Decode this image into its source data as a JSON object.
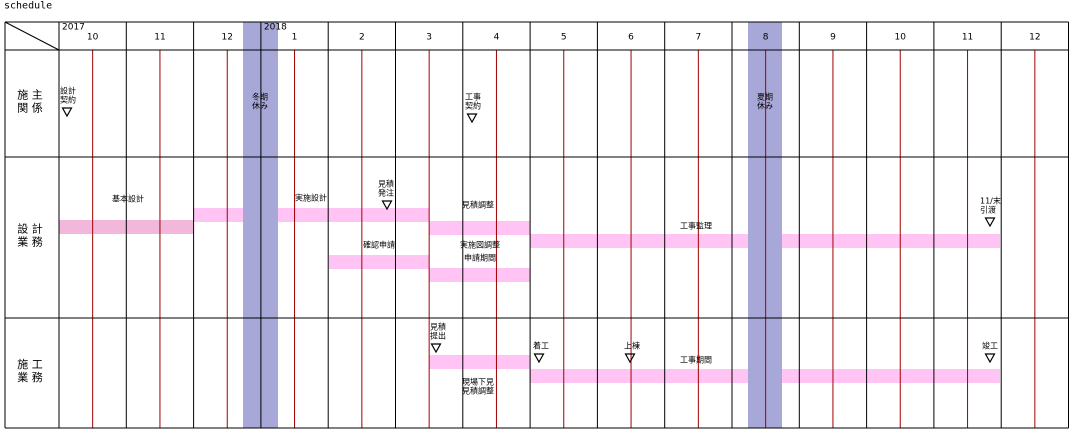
{
  "title": "schedule",
  "years": [
    "2017",
    "2018"
  ],
  "months": [
    "10",
    "11",
    "12",
    "1",
    "2",
    "3",
    "4",
    "5",
    "6",
    "7",
    "8",
    "9",
    "10",
    "11",
    "12"
  ],
  "rows": [
    {
      "label": [
        "施 主",
        "関 係"
      ],
      "notes": [
        [
          "設計",
          "契約"
        ],
        [
          "冬期",
          "休み"
        ],
        [
          "工事",
          "契約"
        ],
        [
          "夏期",
          "休み"
        ]
      ]
    },
    {
      "label": [
        "設 計",
        "業 務"
      ],
      "notes": [
        [
          "基本設計"
        ],
        [
          "実施設計"
        ],
        [
          "見積",
          "発注"
        ],
        [
          "見積調整"
        ],
        [
          "確認申請"
        ],
        [
          "実施図調整"
        ],
        [
          "申請期間"
        ],
        [
          "工事監理"
        ],
        [
          "11/末",
          "引渡"
        ]
      ]
    },
    {
      "label": [
        "施 工",
        "業 務"
      ],
      "notes": [
        [
          "見積",
          "提出"
        ],
        [
          "着工"
        ],
        [
          "上棟"
        ],
        [
          "工事期間"
        ],
        [
          "竣工"
        ],
        [
          "現場下見",
          "見積調整"
        ]
      ]
    }
  ]
}
